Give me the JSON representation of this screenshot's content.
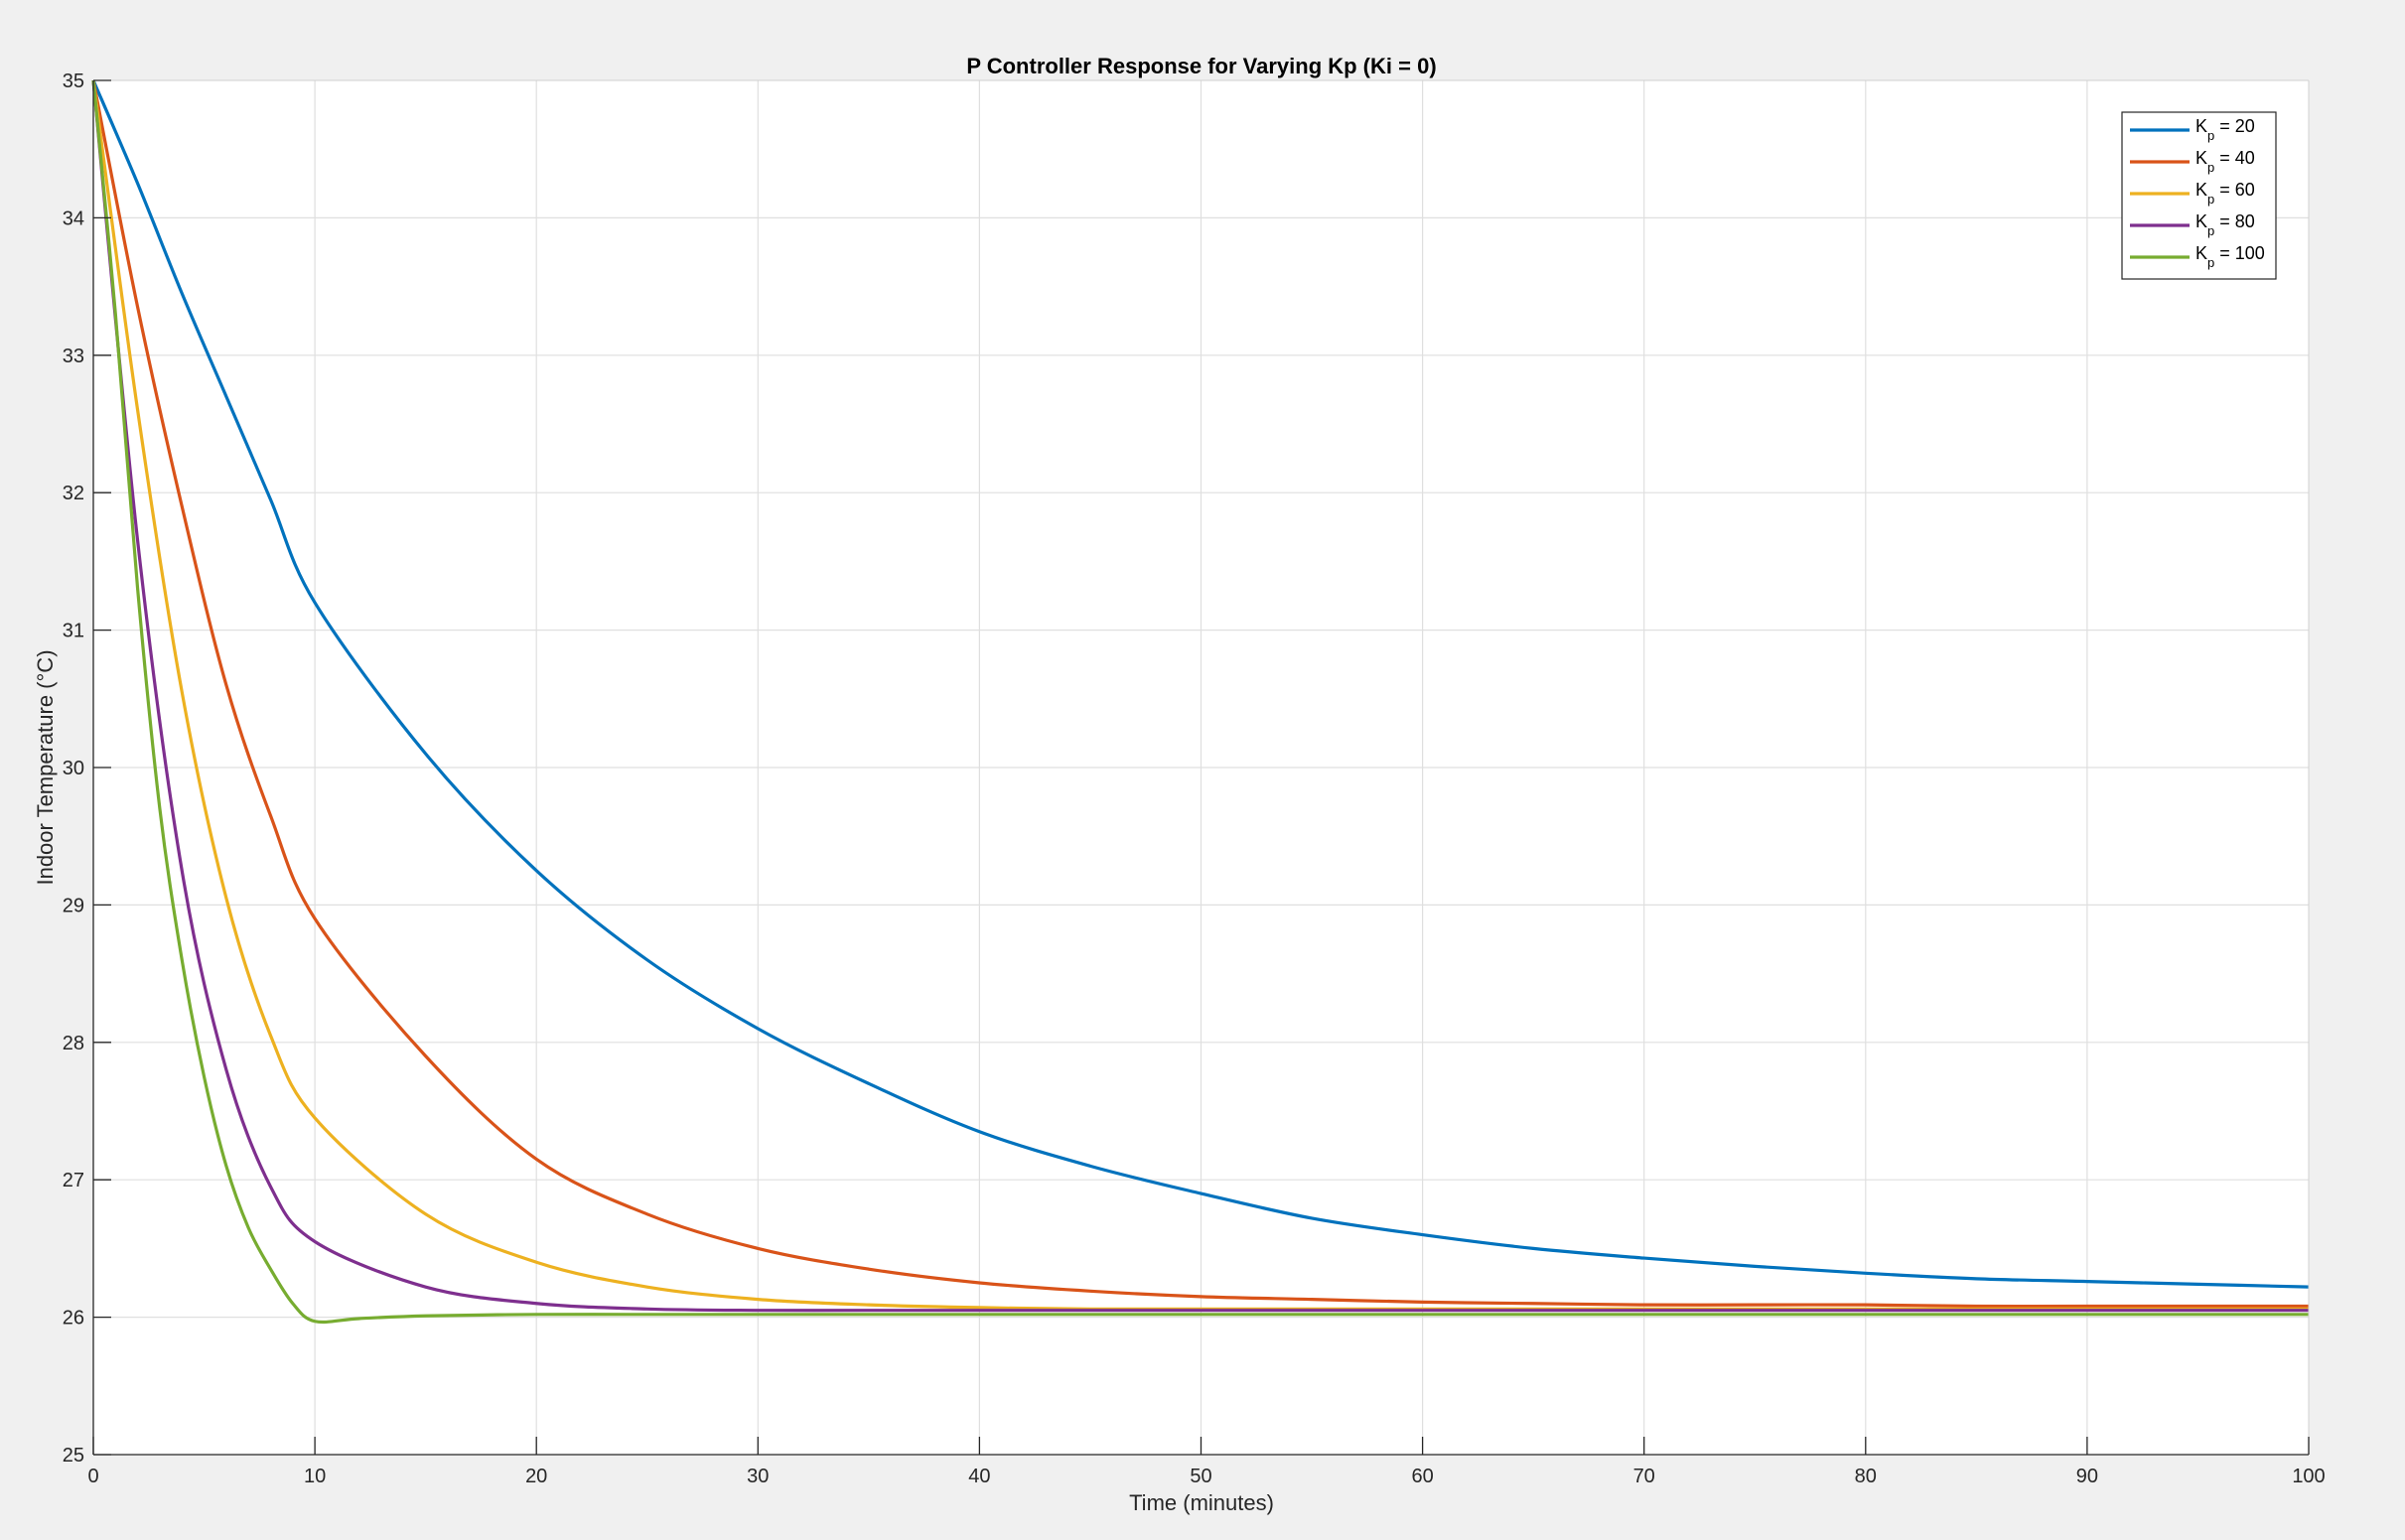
{
  "chart_data": {
    "type": "line",
    "title": "P Controller Response for Varying Kp (Ki = 0)",
    "xlabel": "Time (minutes)",
    "ylabel": "Indoor Temperature (°C)",
    "xlim": [
      0,
      100
    ],
    "ylim": [
      25,
      35
    ],
    "xticks": [
      0,
      10,
      20,
      30,
      40,
      50,
      60,
      70,
      80,
      90,
      100
    ],
    "yticks": [
      25,
      26,
      27,
      28,
      29,
      30,
      31,
      32,
      33,
      34,
      35
    ],
    "grid": true,
    "legend_position": "top-right",
    "series": [
      {
        "name": "Kp = 20",
        "legend_main": "K",
        "legend_sub": "p",
        "legend_value": " = 20",
        "color": "#0072BD",
        "x": [
          0,
          2,
          4,
          6,
          8,
          10,
          15,
          20,
          25,
          30,
          35,
          40,
          45,
          50,
          55,
          60,
          65,
          70,
          75,
          80,
          85,
          90,
          95,
          100
        ],
        "y": [
          35,
          34.25,
          33.45,
          32.7,
          31.95,
          31.2,
          30.1,
          29.25,
          28.6,
          28.1,
          27.7,
          27.35,
          27.1,
          26.9,
          26.72,
          26.6,
          26.5,
          26.43,
          26.37,
          26.32,
          26.28,
          26.26,
          26.24,
          26.22
        ]
      },
      {
        "name": "Kp = 40",
        "legend_main": "K",
        "legend_sub": "p",
        "legend_value": " = 40",
        "color": "#D95319",
        "x": [
          0,
          2,
          4,
          6,
          8,
          10,
          15,
          20,
          25,
          30,
          35,
          40,
          45,
          50,
          55,
          60,
          65,
          70,
          75,
          80,
          85,
          90,
          95,
          100
        ],
        "y": [
          35,
          33.35,
          31.9,
          30.6,
          29.65,
          28.9,
          27.9,
          27.15,
          26.75,
          26.5,
          26.35,
          26.25,
          26.19,
          26.15,
          26.13,
          26.11,
          26.1,
          26.09,
          26.09,
          26.09,
          26.08,
          26.08,
          26.08,
          26.08
        ]
      },
      {
        "name": "Kp = 60",
        "legend_main": "K",
        "legend_sub": "p",
        "legend_value": " = 60",
        "color": "#EDB120",
        "x": [
          0,
          2,
          4,
          6,
          8,
          10,
          15,
          20,
          25,
          30,
          35,
          40,
          45,
          50,
          60,
          70,
          80,
          90,
          100
        ],
        "y": [
          35,
          32.6,
          30.55,
          29.05,
          28.05,
          27.45,
          26.75,
          26.4,
          26.22,
          26.13,
          26.09,
          26.07,
          26.06,
          26.06,
          26.06,
          26.06,
          26.06,
          26.06,
          26.06
        ]
      },
      {
        "name": "Kp = 80",
        "legend_main": "K",
        "legend_sub": "p",
        "legend_value": " = 80",
        "color": "#7E2F8E",
        "x": [
          0,
          2,
          4,
          6,
          8,
          10,
          15,
          20,
          25,
          30,
          35,
          40,
          50,
          60,
          70,
          80,
          90,
          100
        ],
        "y": [
          35,
          31.65,
          29.25,
          27.8,
          26.95,
          26.55,
          26.22,
          26.1,
          26.06,
          26.05,
          26.05,
          26.05,
          26.05,
          26.05,
          26.05,
          26.05,
          26.05,
          26.05
        ]
      },
      {
        "name": "Kp = 100",
        "legend_main": "K",
        "legend_sub": "p",
        "legend_value": " = 100",
        "color": "#77AC30",
        "x": [
          0,
          1,
          2,
          3,
          4,
          5,
          6,
          7,
          8,
          9,
          10,
          12,
          15,
          20,
          25,
          30,
          40,
          50,
          60,
          70,
          80,
          90,
          100
        ],
        "y": [
          35,
          33.3,
          31.3,
          29.7,
          28.6,
          27.75,
          27.1,
          26.65,
          26.35,
          26.1,
          25.97,
          25.99,
          26.01,
          26.02,
          26.02,
          26.02,
          26.02,
          26.02,
          26.02,
          26.02,
          26.02,
          26.02,
          26.02
        ]
      }
    ]
  }
}
